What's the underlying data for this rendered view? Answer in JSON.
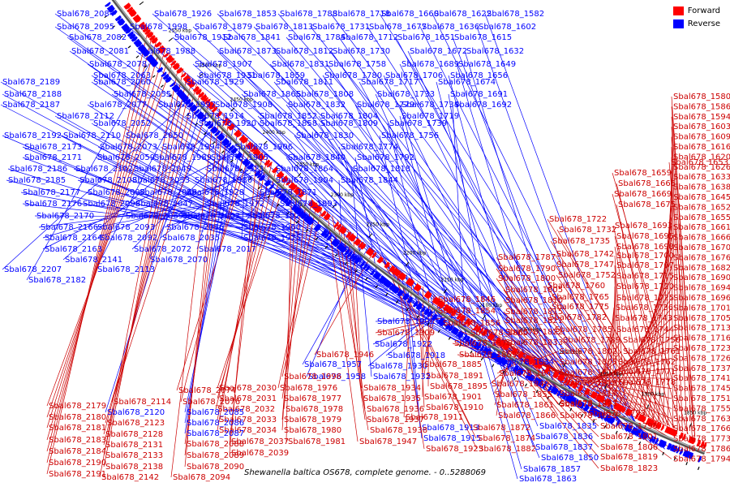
{
  "title": "Shewanella baltica OS678, complete genome. - 0..5288069",
  "legend": [
    {
      "label": "Forward",
      "color": "#ff0000"
    },
    {
      "label": "Reverse",
      "color": "#0000ff"
    }
  ],
  "colors": {
    "forward": "#ff0000",
    "reverse": "#0000ff",
    "backbone": "#555555"
  },
  "ticks": [
    "1850 kbp",
    "1900 kbp",
    "1950 kbp",
    "2000 kbp",
    "2050 kbp",
    "2100 kbp",
    "2150 kbp",
    "2200 kbp",
    "2250 kbp",
    "2300 kbp",
    "2350 kbp",
    "2400 kbp",
    "2450 kbp",
    "2500 kbp",
    "2550 kbp",
    "2600 kbp"
  ],
  "labels_reverse_top": [
    "Sbal678_2084",
    "Sbal678_1926",
    "Sbal678_1853",
    "Sbal678_1788",
    "Sbal678_1718",
    "Sbal678_1660",
    "Sbal678_1622",
    "Sbal678_1582",
    "Sbal678_2095",
    "Sbal678_1998",
    "Sbal678_1879",
    "Sbal678_1813",
    "Sbal678_1731",
    "Sbal678_1677",
    "Sbal678_1636",
    "Sbal678_1602",
    "Sbal678_2082",
    "Sbal678_1912",
    "Sbal678_1841",
    "Sbal678_1784",
    "Sbal678_1712",
    "Sbal678_1651",
    "Sbal678_1615",
    "Sbal678_2081",
    "Sbal678_1988",
    "Sbal678_1873",
    "Sbal678_1812",
    "Sbal678_1730",
    "Sbal678_1672",
    "Sbal678_1632",
    "Sbal678_2078",
    "Sbal678_1907",
    "Sbal678_1831",
    "Sbal678_1758",
    "Sbal678_1689",
    "Sbal678_1649",
    "Sbal678_2063",
    "Sbal678_1931",
    "Sbal678_1859",
    "Sbal678_1780",
    "Sbal678_1706",
    "Sbal678_1656",
    "Sbal678_2189",
    "Sbal678_2060",
    "Sbal678_1929",
    "Sbal678_1811",
    "Sbal678_1717",
    "Sbal678_1674",
    "Sbal678_2188",
    "Sbal678_2055",
    "Sbal678_1865",
    "Sbal678_1808",
    "Sbal678_1733",
    "Sbal678_1691",
    "Sbal678_2187",
    "Sbal678_2077",
    "Sbal678_1997",
    "Sbal678_1908",
    "Sbal678_1832",
    "Sbal678_1779",
    "Sbal678_1734",
    "Sbal678_1692",
    "Sbal678_2112",
    "Sbal678_1914",
    "Sbal678_1852",
    "Sbal678_1804",
    "Sbal678_1719",
    "Sbal678_2052",
    "Sbal678_1920",
    "Sbal678_1858",
    "Sbal678_1809",
    "Sbal678_1739",
    "Sbal678_2192",
    "Sbal678_2110",
    "Sbal678_2050",
    "Sbal678_1830",
    "Sbal678_1756",
    "Sbal678_2173",
    "Sbal678_2073",
    "Sbal678_1994",
    "Sbal678_1906",
    "Sbal678_1774",
    "Sbal678_2171",
    "Sbal678_2059",
    "Sbal678_1989",
    "Sbal678_1905",
    "Sbal678_1840",
    "Sbal678_1792",
    "Sbal678_2186",
    "Sbal678_2102",
    "Sbal678_2049",
    "Sbal678_1921",
    "Sbal678_1864",
    "Sbal678_1818",
    "Sbal678_2185",
    "Sbal678_2108",
    "Sbal678_2053",
    "Sbal678_1986",
    "Sbal678_1904",
    "Sbal678_1844",
    "Sbal678_2177",
    "Sbal678_2099",
    "Sbal678_2048",
    "Sbal678_1928",
    "Sbal678_1871",
    "Sbal678_2176",
    "Sbal678_2098",
    "Sbal678_2047",
    "Sbal678_1972",
    "Sbal678_1893",
    "Sbal678_2170",
    "Sbal678_2069",
    "Sbal678_2003",
    "Sbal678_1924",
    "Sbal678_2166",
    "Sbal678_2093",
    "Sbal678_2036",
    "Sbal678_1960",
    "Sbal678_2164",
    "Sbal678_2092",
    "Sbal678_2035",
    "Sbal678_1975",
    "Sbal678_2163",
    "Sbal678_2072",
    "Sbal678_2017",
    "Sbal678_2141",
    "Sbal678_2070",
    "Sbal678_2207",
    "Sbal678_2113",
    "Sbal678_2182"
  ],
  "labels_right": [
    "Sbal678_1653",
    "Sbal678_1659",
    "Sbal678_1665",
    "Sbal678_1669",
    "Sbal678_1675",
    "Sbal678_1693",
    "Sbal678_1695",
    "Sbal678_1698",
    "Sbal678_1580",
    "Sbal678_1586",
    "Sbal678_1594",
    "Sbal678_1603",
    "Sbal678_1609",
    "Sbal678_1616",
    "Sbal678_1620",
    "Sbal678_1626",
    "Sbal678_1633",
    "Sbal678_1638",
    "Sbal678_1645",
    "Sbal678_1652",
    "Sbal678_1655",
    "Sbal678_1661",
    "Sbal678_1666",
    "Sbal678_1670",
    "Sbal678_1676",
    "Sbal678_1682",
    "Sbal678_1690",
    "Sbal678_1694",
    "Sbal678_1696",
    "Sbal678_1701",
    "Sbal678_1705",
    "Sbal678_1713",
    "Sbal678_1716",
    "Sbal678_1723",
    "Sbal678_1726",
    "Sbal678_1737",
    "Sbal678_1741",
    "Sbal678_1745",
    "Sbal678_1751",
    "Sbal678_1755",
    "Sbal678_1763",
    "Sbal678_1766",
    "Sbal678_1773",
    "Sbal678_1786",
    "Sbal678_1794"
  ],
  "labels_middle": [
    "Sbal678_1722",
    "Sbal678_1732",
    "Sbal678_1735",
    "Sbal678_1742",
    "Sbal678_1747",
    "Sbal678_1752",
    "Sbal678_1760",
    "Sbal678_1765",
    "Sbal678_1775",
    "Sbal678_1782",
    "Sbal678_1785",
    "Sbal678_1789",
    "Sbal678_1700",
    "Sbal678_1707",
    "Sbal678_1715",
    "Sbal678_1720",
    "Sbal678_1725",
    "Sbal678_1736",
    "Sbal678_1743",
    "Sbal678_1744",
    "Sbal678_1750",
    "Sbal678_1761",
    "Sbal678_1762",
    "Sbal678_1771",
    "Sbal678_1778",
    "Sbal678_1787",
    "Sbal678_1790",
    "Sbal678_1800",
    "Sbal678_1805",
    "Sbal678_1810",
    "Sbal678_1815",
    "Sbal678_1821",
    "Sbal678_1822",
    "Sbal678_1833",
    "Sbal678_1802",
    "Sbal678_1803",
    "Sbal678_1814",
    "Sbal678_1816",
    "Sbal678_1817",
    "Sbal678_1827",
    "Sbal678_1829",
    "Sbal678_1791",
    "Sbal678_1793",
    "Sbal678_1795",
    "Sbal678_1801",
    "Sbal678_1806",
    "Sbal678_1819",
    "Sbal678_1823"
  ],
  "labels_bottom": [
    "Sbal678_1846",
    "Sbal678_1854",
    "Sbal678_1856",
    "Sbal678_1860",
    "Sbal678_1876",
    "Sbal678_1869",
    "Sbal678_1834",
    "Sbal678_1847",
    "Sbal678_1849",
    "Sbal678_1855",
    "Sbal678_1861",
    "Sbal678_1866",
    "Sbal678_1835",
    "Sbal678_1836",
    "Sbal678_1837",
    "Sbal678_1850",
    "Sbal678_1857",
    "Sbal678_1863",
    "Sbal678_1902",
    "Sbal678_1909",
    "Sbal678_1922",
    "Sbal678_1918",
    "Sbal678_1930",
    "Sbal678_1885",
    "Sbal678_1891",
    "Sbal678_1895",
    "Sbal678_1901",
    "Sbal678_1910",
    "Sbal678_1911",
    "Sbal678_1913",
    "Sbal678_1915",
    "Sbal678_1923",
    "Sbal678_1872",
    "Sbal678_1874",
    "Sbal678_1882",
    "Sbal678_1946",
    "Sbal678_1957",
    "Sbal678_1958",
    "Sbal678_1932",
    "Sbal678_1934",
    "Sbal678_1935",
    "Sbal678_1936",
    "Sbal678_1937",
    "Sbal678_1938",
    "Sbal678_1947",
    "Sbal678_1996",
    "Sbal678_1976",
    "Sbal678_1977",
    "Sbal678_1978",
    "Sbal678_1979",
    "Sbal678_1980",
    "Sbal678_1981",
    "Sbal678_2030",
    "Sbal678_2031",
    "Sbal678_2032",
    "Sbal678_2033",
    "Sbal678_2034",
    "Sbal678_2037",
    "Sbal678_2039",
    "Sbal678_2074",
    "Sbal678_2076",
    "Sbal678_2085",
    "Sbal678_2086",
    "Sbal678_2087",
    "Sbal678_2088",
    "Sbal678_2089",
    "Sbal678_2090",
    "Sbal678_2094",
    "Sbal678_2114",
    "Sbal678_2120",
    "Sbal678_2123",
    "Sbal678_2128",
    "Sbal678_2131",
    "Sbal678_2133",
    "Sbal678_2138",
    "Sbal678_2142",
    "Sbal678_2179",
    "Sbal678_2180",
    "Sbal678_2181",
    "Sbal678_2183",
    "Sbal678_2184",
    "Sbal678_2190",
    "Sbal678_2191"
  ]
}
